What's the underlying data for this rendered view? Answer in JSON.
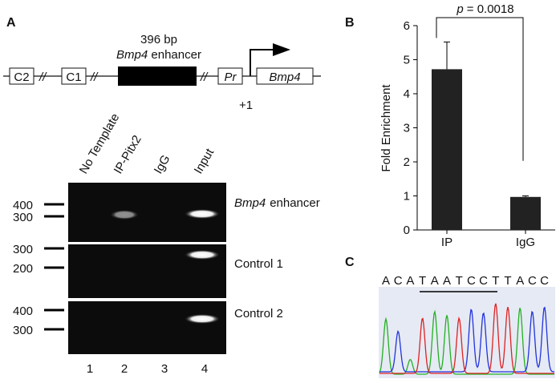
{
  "panel_a": {
    "label": "A",
    "diagram": {
      "size": "396 bp",
      "enhancer_gene": "Bmp4",
      "enhancer_word": "enhancer",
      "elements": [
        "C2",
        "C1",
        "Pr",
        "Bmp4"
      ],
      "break": "//",
      "tss": "+1"
    },
    "lanes": [
      "No Template",
      "IP-Pitx2",
      "IgG",
      "Input"
    ],
    "gels": [
      {
        "gene": "Bmp4",
        "name": "enhancer",
        "markers": [
          "400",
          "300"
        ]
      },
      {
        "name": "Control 1",
        "markers": [
          "300",
          "200"
        ]
      },
      {
        "name": "Control 2",
        "markers": [
          "400",
          "300"
        ]
      }
    ],
    "lane_numbers": [
      "1",
      "2",
      "3",
      "4"
    ]
  },
  "chart_data": {
    "type": "bar",
    "label": "B",
    "categories": [
      "IP",
      "IgG"
    ],
    "values": [
      4.72,
      0.97
    ],
    "errors": [
      0.8,
      0.03
    ],
    "color": "#222222",
    "ylabel": "Fold Enrichment",
    "ylim": [
      0,
      6
    ],
    "yticks": [
      0,
      1,
      2,
      3,
      4,
      5,
      6
    ],
    "annotation": {
      "p": "p",
      "text": "= 0.0018"
    }
  },
  "panel_c": {
    "label": "C",
    "sequence": [
      "A",
      "C",
      "A",
      "T",
      "A",
      "A",
      "T",
      "C",
      "C",
      "T",
      "T",
      "A",
      "C",
      "C"
    ]
  }
}
